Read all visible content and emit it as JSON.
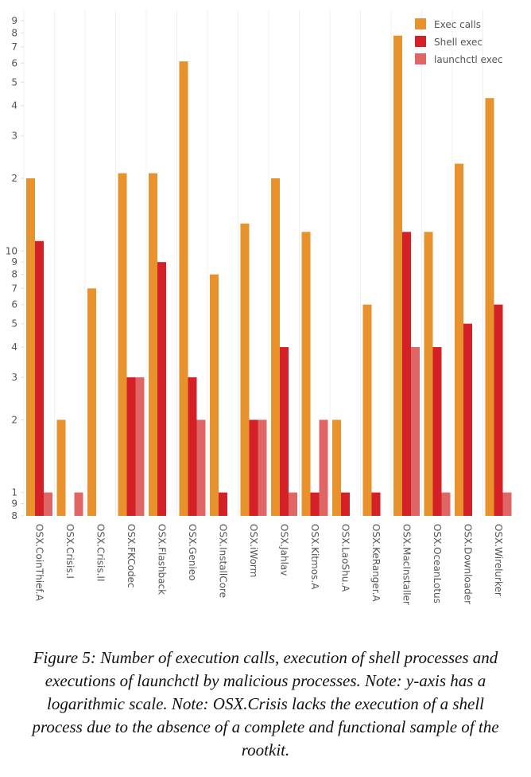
{
  "chart_data": {
    "type": "bar",
    "yscale": "log",
    "caption": "Figure 5: Number of execution calls, execution of shell processes and executions of launchctl by malicious processes. Note: y-axis has a logarithmic scale. Note: OSX.Crisis lacks the execution of a shell process due to the absence of a complete and functional sample of the rootkit.",
    "categories": [
      "OSX.CoinThief.A",
      "OSX.Crisis.I",
      "OSX.Crisis.II",
      "OSX.FKCodec",
      "OSX.Flashback",
      "OSX.Genieo",
      "OSX.InstallCore",
      "OSX.iWorm",
      "OSX.Jahlav",
      "OSX.Kitmos.A",
      "OSX.LaoShu.A",
      "OSX.KeRanger.A",
      "OSX.MacInstaller",
      "OSX.OceanLotus",
      "OSX.Downloader",
      "OSX.Wirelurker"
    ],
    "series": [
      {
        "name": "Exec calls",
        "color": "#e8922e",
        "values": [
          20,
          2,
          7,
          21,
          21,
          61,
          8,
          13,
          20,
          12,
          2,
          6,
          78,
          12,
          23,
          43
        ]
      },
      {
        "name": "Shell exec",
        "color": "#d42027",
        "values": [
          11,
          null,
          null,
          3,
          9,
          3,
          1,
          2,
          4,
          1,
          1,
          1,
          12,
          4,
          5,
          6
        ]
      },
      {
        "name": "launchctl exec",
        "color": "#e06666",
        "values": [
          1,
          1,
          null,
          3,
          null,
          2,
          null,
          2,
          1,
          2,
          null,
          null,
          4,
          1,
          null,
          1
        ]
      }
    ],
    "ylim": [
      0.8,
      100
    ],
    "yticks": [
      {
        "value": 0.8,
        "label": "8"
      },
      {
        "value": 0.9,
        "label": "9"
      },
      1,
      2,
      3,
      4,
      5,
      6,
      7,
      8,
      9,
      10,
      {
        "value": 20,
        "label": "2"
      },
      {
        "value": 30,
        "label": "3"
      },
      {
        "value": 40,
        "label": "4"
      },
      {
        "value": 50,
        "label": "5"
      },
      {
        "value": 60,
        "label": "6"
      },
      {
        "value": 70,
        "label": "7"
      },
      {
        "value": 80,
        "label": "8"
      },
      {
        "value": 90,
        "label": "9"
      }
    ],
    "legend": "top-right"
  }
}
